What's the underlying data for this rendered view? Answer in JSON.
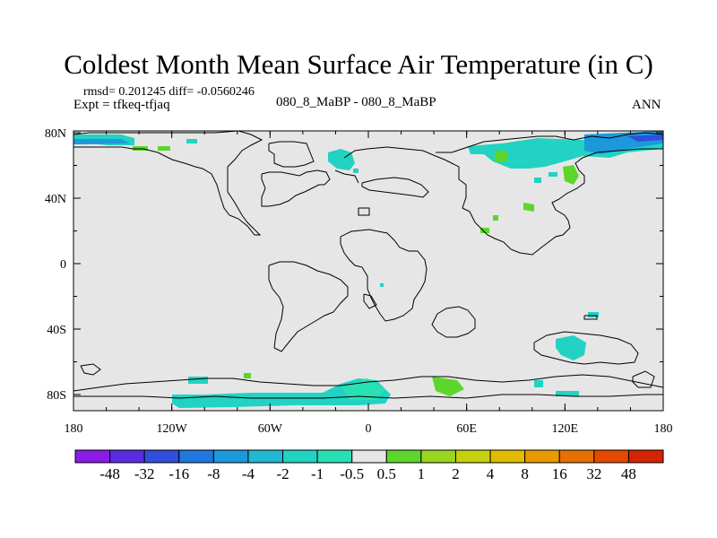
{
  "figure": {
    "title": "Coldest Month Mean Surface Air Temperature (in C)",
    "stats": "rmsd= 0.201245 diff= -0.0560246",
    "experiment": "Expt = tfkeq-tfjaq",
    "case": "080_8_MaBP - 080_8_MaBP",
    "season": "ANN"
  },
  "axes": {
    "lon_labels": [
      "180",
      "120W",
      "60W",
      "0",
      "60E",
      "120E",
      "180"
    ],
    "lat_labels": [
      "80N",
      "40N",
      "0",
      "40S",
      "80S"
    ]
  },
  "colors": {
    "background_no_change": "#e6e6e6",
    "coast": "#000000"
  },
  "legend": {
    "labels": [
      "-48",
      "-32",
      "-16",
      "-8",
      "-4",
      "-2",
      "-1",
      "-0.5",
      "0.5",
      "1",
      "2",
      "4",
      "8",
      "16",
      "32",
      "48"
    ],
    "colors": [
      "#8a1be8",
      "#5a2ce0",
      "#2f4fdc",
      "#1f78e0",
      "#1e98dc",
      "#20b8d2",
      "#22d2c2",
      "#28e0b4",
      "#e6e6e6",
      "#5cd62a",
      "#9ad520",
      "#c6d00e",
      "#e0bc00",
      "#e89a00",
      "#e67000",
      "#e34a00",
      "#d42400"
    ]
  }
}
